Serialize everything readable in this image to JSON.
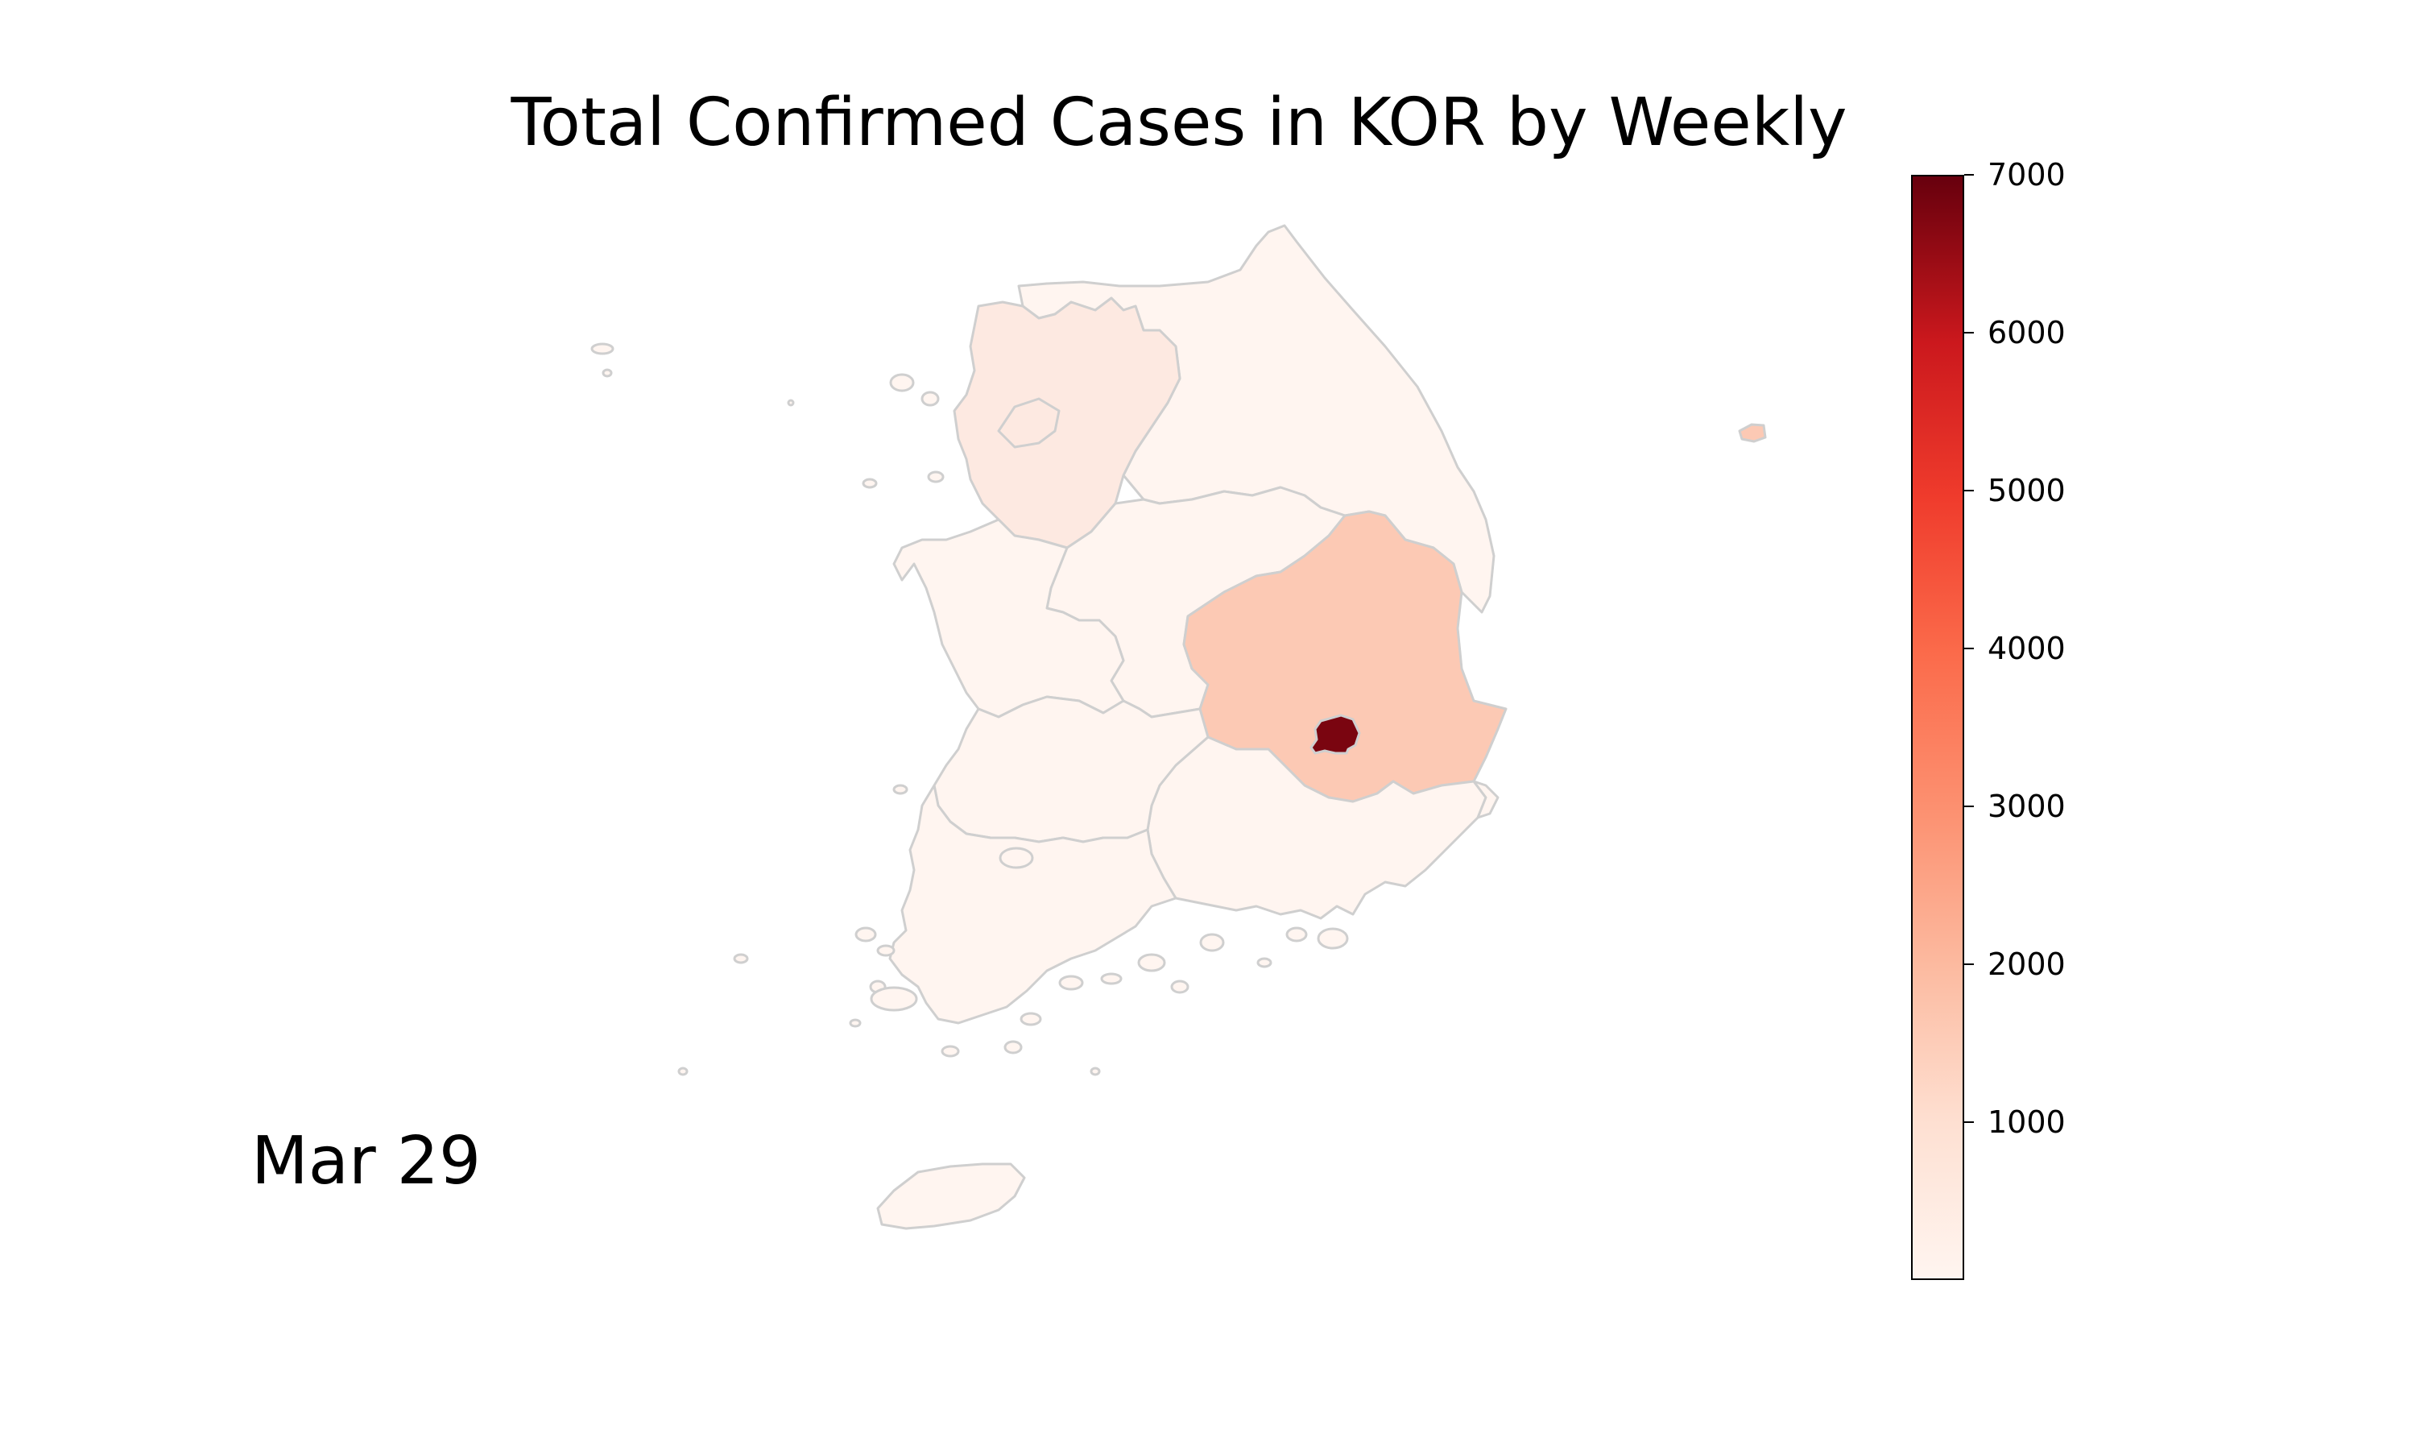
{
  "title": "Total Confirmed Cases in KOR by Weekly",
  "date_label": "Mar 29",
  "colorbar": {
    "colormap": "Reds",
    "min": 0,
    "max": 7000,
    "ticks": [
      "1000",
      "2000",
      "3000",
      "4000",
      "5000",
      "6000",
      "7000"
    ],
    "tick_values": [
      1000,
      2000,
      3000,
      4000,
      5000,
      6000,
      7000
    ]
  },
  "colors": {
    "low": "#fff5f0",
    "light": "#fde9e1",
    "medium": "#fcc9b4",
    "high": "#7a0510",
    "border": "#cfcfcf"
  }
}
